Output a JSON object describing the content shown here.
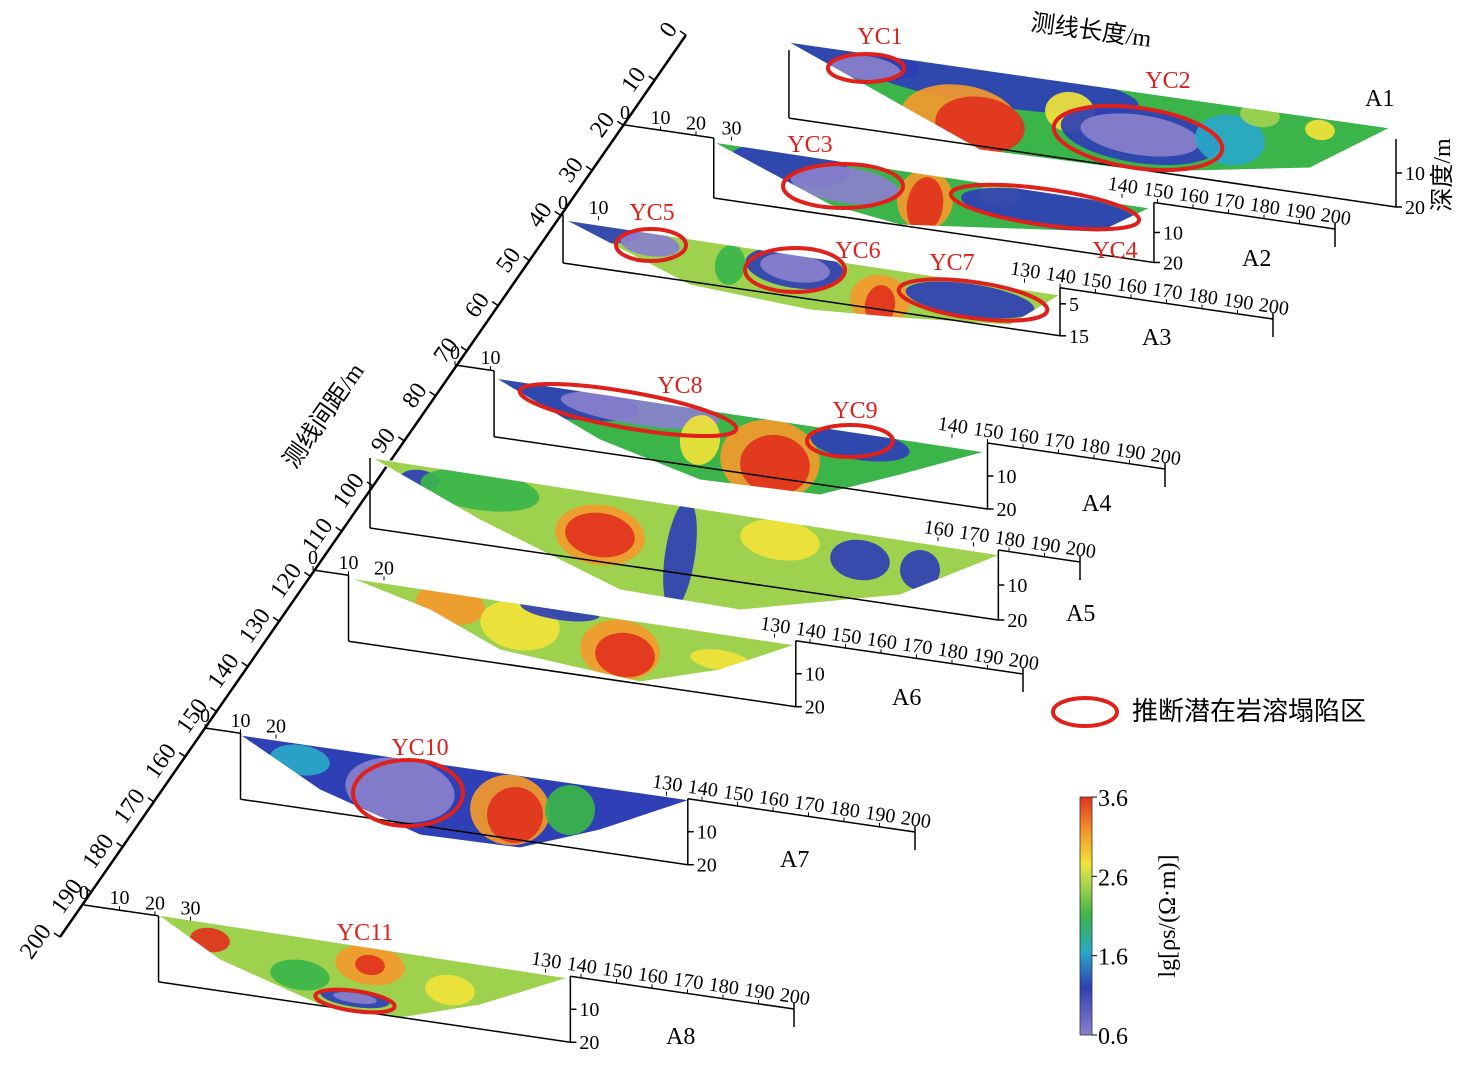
{
  "spacing_axis": {
    "title": "测线间距/m",
    "ticks": [
      0,
      10,
      20,
      30,
      40,
      50,
      60,
      70,
      80,
      90,
      100,
      110,
      120,
      130,
      140,
      150,
      160,
      170,
      180,
      190,
      200
    ]
  },
  "length_axis_title": "测线长度/m",
  "depth_axis_title": "深度/m",
  "profiles": [
    {
      "name": "A1",
      "start_ticks": [],
      "end_ticks": [],
      "depth_ticks": [
        10,
        20
      ],
      "anomalies": [
        "YC1",
        "YC2"
      ]
    },
    {
      "name": "A2",
      "start_ticks": [
        0,
        10,
        20,
        30
      ],
      "end_ticks": [
        140,
        150,
        160,
        170,
        180,
        190,
        200
      ],
      "depth_ticks": [
        10,
        20
      ],
      "anomalies": [
        "YC3",
        "YC4"
      ]
    },
    {
      "name": "A3",
      "start_ticks": [
        0,
        10
      ],
      "end_ticks": [
        130,
        140,
        150,
        160,
        170,
        180,
        190,
        200
      ],
      "depth_ticks": [
        5,
        15
      ],
      "anomalies": [
        "YC5",
        "YC6",
        "YC7"
      ]
    },
    {
      "name": "A4",
      "start_ticks": [
        0,
        10
      ],
      "end_ticks": [
        140,
        150,
        160,
        170,
        180,
        190,
        200
      ],
      "depth_ticks": [
        10,
        20
      ],
      "anomalies": [
        "YC8",
        "YC9"
      ]
    },
    {
      "name": "A5",
      "start_ticks": [],
      "end_ticks": [
        160,
        170,
        180,
        190,
        200
      ],
      "depth_ticks": [
        10,
        20
      ],
      "anomalies": []
    },
    {
      "name": "A6",
      "start_ticks": [
        0,
        10,
        20
      ],
      "end_ticks": [
        130,
        140,
        150,
        160,
        170,
        180,
        190,
        200
      ],
      "depth_ticks": [
        10,
        20
      ],
      "anomalies": []
    },
    {
      "name": "A7",
      "start_ticks": [
        0,
        10,
        20
      ],
      "end_ticks": [
        130,
        140,
        150,
        160,
        170,
        180,
        190,
        200
      ],
      "depth_ticks": [
        10,
        20
      ],
      "anomalies": [
        "YC10"
      ]
    },
    {
      "name": "A8",
      "start_ticks": [
        0,
        10,
        20,
        30
      ],
      "end_ticks": [
        130,
        140,
        150,
        160,
        170,
        180,
        190,
        200
      ],
      "depth_ticks": [
        10,
        20
      ],
      "anomalies": [
        "YC11"
      ]
    }
  ],
  "legend": {
    "label": "推断潜在岩溶塌陷区"
  },
  "colorbar": {
    "title": "lg[ρs/(Ω·m)]",
    "range": [
      0.6,
      3.6
    ],
    "ticks": [
      3.6,
      2.6,
      1.6,
      0.6
    ]
  }
}
